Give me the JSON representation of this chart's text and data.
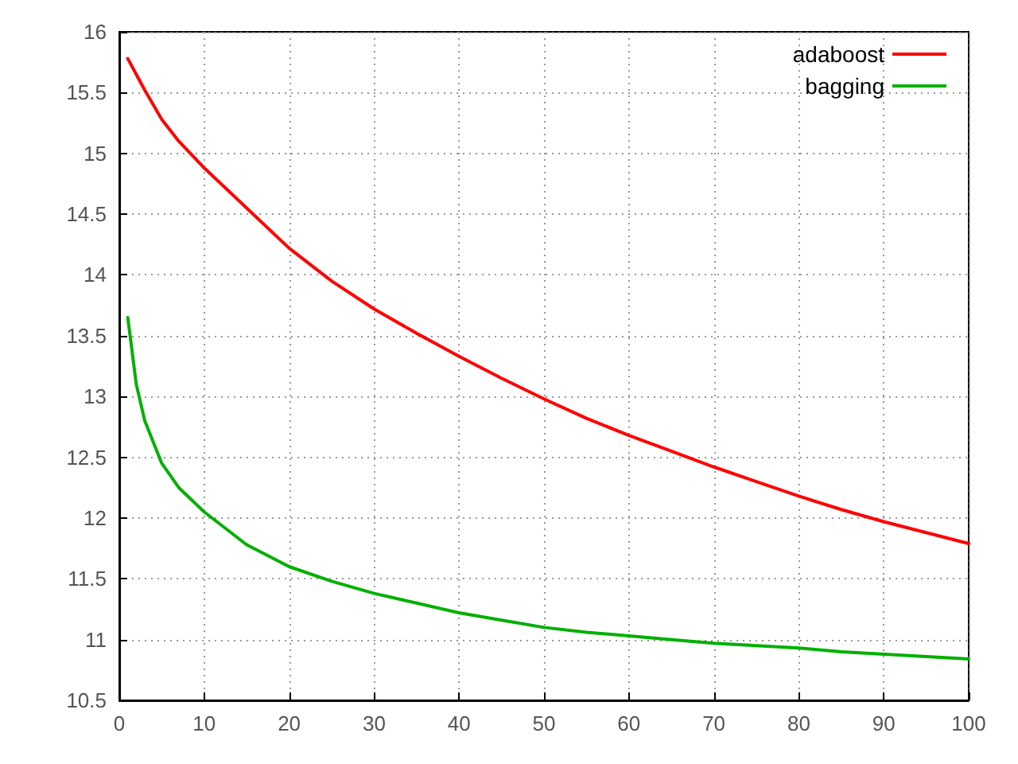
{
  "chart_data": {
    "type": "line",
    "xlim": [
      0,
      100
    ],
    "ylim": [
      10.5,
      16
    ],
    "xticks": [
      0,
      10,
      20,
      30,
      40,
      50,
      60,
      70,
      80,
      90,
      100
    ],
    "yticks": [
      10.5,
      11,
      11.5,
      12,
      12.5,
      13,
      13.5,
      14,
      14.5,
      15,
      15.5,
      16
    ],
    "grid": true,
    "legend": "top right",
    "marker": "none",
    "line_style": "solid",
    "series": [
      {
        "name": "adaboost",
        "color": "#ff0000",
        "x": [
          1,
          2,
          3,
          5,
          7,
          10,
          15,
          20,
          25,
          30,
          35,
          40,
          45,
          50,
          55,
          60,
          65,
          70,
          75,
          80,
          85,
          90,
          95,
          100
        ],
        "values": [
          15.78,
          15.65,
          15.52,
          15.28,
          15.1,
          14.88,
          14.55,
          14.22,
          13.95,
          13.72,
          13.52,
          13.33,
          13.15,
          12.98,
          12.82,
          12.68,
          12.55,
          12.42,
          12.3,
          12.18,
          12.07,
          11.97,
          11.88,
          11.79
        ]
      },
      {
        "name": "bagging",
        "color": "#00b000",
        "x": [
          1,
          2,
          3,
          5,
          7,
          10,
          15,
          20,
          25,
          30,
          35,
          40,
          45,
          50,
          55,
          60,
          65,
          70,
          75,
          80,
          85,
          90,
          95,
          100
        ],
        "values": [
          13.65,
          13.1,
          12.8,
          12.45,
          12.25,
          12.05,
          11.78,
          11.6,
          11.48,
          11.38,
          11.3,
          11.22,
          11.16,
          11.1,
          11.06,
          11.03,
          11.0,
          10.97,
          10.95,
          10.93,
          10.9,
          10.88,
          10.86,
          10.84
        ]
      }
    ]
  }
}
